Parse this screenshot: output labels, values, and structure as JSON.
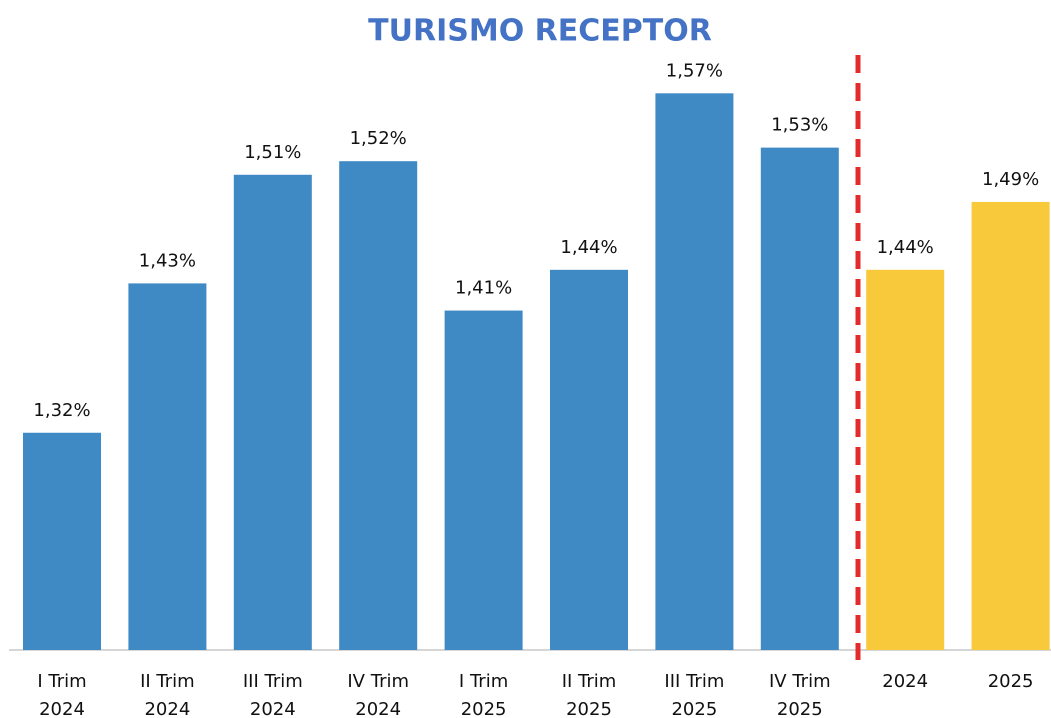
{
  "chart_data": {
    "type": "bar",
    "title": "TURISMO RECEPTOR",
    "categories": [
      [
        "I Trim",
        "2024"
      ],
      [
        "II Trim",
        "2024"
      ],
      [
        "III Trim",
        "2024"
      ],
      [
        "IV Trim",
        "2024"
      ],
      [
        "I Trim",
        "2025"
      ],
      [
        "II Trim",
        "2025"
      ],
      [
        "III Trim",
        "2025"
      ],
      [
        "IV Trim",
        "2025"
      ],
      [
        "2024"
      ],
      [
        "2025"
      ]
    ],
    "values": [
      1.32,
      1.43,
      1.51,
      1.52,
      1.41,
      1.44,
      1.57,
      1.53,
      1.44,
      1.49
    ],
    "value_labels": [
      "1,32%",
      "1,43%",
      "1,51%",
      "1,52%",
      "1,41%",
      "1,44%",
      "1,57%",
      "1,53%",
      "1,44%",
      "1,49%"
    ],
    "colors": [
      "#3f8ac4",
      "#3f8ac4",
      "#3f8ac4",
      "#3f8ac4",
      "#3f8ac4",
      "#3f8ac4",
      "#3f8ac4",
      "#3f8ac4",
      "#f9c93c",
      "#f9c93c"
    ],
    "ylim": [
      1.16,
      1.61
    ],
    "grid": false
  }
}
